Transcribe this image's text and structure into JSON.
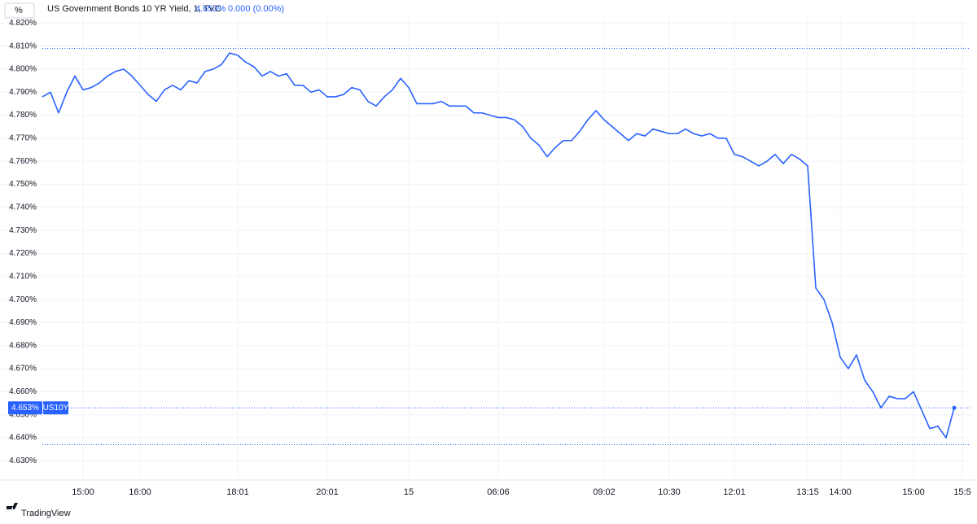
{
  "header": {
    "unit": "%",
    "title": "US Government Bonds 10 YR Yield, 1, TVC",
    "last": "4.653%",
    "change": "0.000 (0.00%)"
  },
  "chart_data": {
    "type": "line",
    "categories": [
      null,
      null,
      null,
      null,
      null,
      "15:00",
      null,
      null,
      null,
      null,
      null,
      null,
      "16:00",
      null,
      null,
      null,
      null,
      null,
      null,
      null,
      null,
      null,
      null,
      null,
      "18:01",
      null,
      null,
      null,
      null,
      null,
      null,
      null,
      null,
      null,
      null,
      "20:01",
      null,
      null,
      null,
      null,
      null,
      null,
      null,
      null,
      null,
      "15",
      null,
      null,
      null,
      null,
      null,
      null,
      null,
      null,
      null,
      null,
      "06:06",
      null,
      null,
      null,
      null,
      null,
      null,
      null,
      null,
      null,
      null,
      null,
      null,
      "09:02",
      null,
      null,
      null,
      null,
      null,
      null,
      null,
      "10:30",
      null,
      null,
      null,
      null,
      null,
      null,
      null,
      "12:01",
      null,
      null,
      null,
      null,
      null,
      null,
      null,
      null,
      "13:15",
      null,
      null,
      null,
      "14:00",
      null,
      null,
      null,
      null,
      null,
      null,
      null,
      null,
      "15:00",
      null,
      null,
      null,
      null,
      null,
      "15:5"
    ],
    "series": [
      {
        "name": "US10Y",
        "color": "#2962ff",
        "values": [
          4.788,
          4.79,
          4.781,
          4.79,
          4.797,
          4.791,
          4.792,
          4.794,
          4.797,
          4.799,
          4.8,
          4.797,
          4.793,
          4.789,
          4.786,
          4.791,
          4.793,
          4.791,
          4.795,
          4.794,
          4.799,
          4.8,
          4.802,
          4.807,
          4.806,
          4.803,
          4.801,
          4.797,
          4.799,
          4.797,
          4.798,
          4.793,
          4.793,
          4.79,
          4.791,
          4.788,
          4.788,
          4.789,
          4.792,
          4.791,
          4.786,
          4.784,
          4.788,
          4.791,
          4.796,
          4.792,
          4.785,
          4.785,
          4.785,
          4.786,
          4.784,
          4.784,
          4.784,
          4.781,
          4.781,
          4.78,
          4.779,
          4.779,
          4.778,
          4.775,
          4.77,
          4.767,
          4.762,
          4.766,
          4.769,
          4.769,
          4.773,
          4.778,
          4.782,
          4.778,
          4.775,
          4.772,
          4.769,
          4.772,
          4.771,
          4.774,
          4.773,
          4.772,
          4.772,
          4.774,
          4.772,
          4.771,
          4.772,
          4.77,
          4.77,
          4.763,
          4.762,
          4.76,
          4.758,
          4.76,
          4.763,
          4.759,
          4.763,
          4.761,
          4.758,
          4.705,
          4.7,
          4.69,
          4.675,
          4.67,
          4.676,
          4.665,
          4.66,
          4.653,
          4.658,
          4.657,
          4.657,
          4.66,
          4.652,
          4.644,
          4.645,
          4.64,
          4.653,
          null
        ]
      }
    ],
    "ylim": [
      4.622,
      4.824
    ],
    "yticks": [
      {
        "value": 4.63,
        "label": "4.630%"
      },
      {
        "value": 4.64,
        "label": "4.640%"
      },
      {
        "value": 4.65,
        "label": "4.650%"
      },
      {
        "value": 4.66,
        "label": "4.660%"
      },
      {
        "value": 4.67,
        "label": "4.670%"
      },
      {
        "value": 4.68,
        "label": "4.680%"
      },
      {
        "value": 4.69,
        "label": "4.690%"
      },
      {
        "value": 4.7,
        "label": "4.700%"
      },
      {
        "value": 4.71,
        "label": "4.710%"
      },
      {
        "value": 4.72,
        "label": "4.720%"
      },
      {
        "value": 4.73,
        "label": "4.730%"
      },
      {
        "value": 4.74,
        "label": "4.740%"
      },
      {
        "value": 4.75,
        "label": "4.750%"
      },
      {
        "value": 4.76,
        "label": "4.760%"
      },
      {
        "value": 4.77,
        "label": "4.770%"
      },
      {
        "value": 4.78,
        "label": "4.780%"
      },
      {
        "value": 4.79,
        "label": "4.790%"
      },
      {
        "value": 4.8,
        "label": "4.800%"
      },
      {
        "value": 4.81,
        "label": "4.810%"
      },
      {
        "value": 4.82,
        "label": "4.820%"
      }
    ],
    "grid": true,
    "hlines": [
      4.809,
      4.637
    ],
    "price_tag": {
      "value": 4.653,
      "label": "4.653%",
      "symbol": "US10Y"
    }
  },
  "footer": {
    "brand": "TradingView"
  }
}
